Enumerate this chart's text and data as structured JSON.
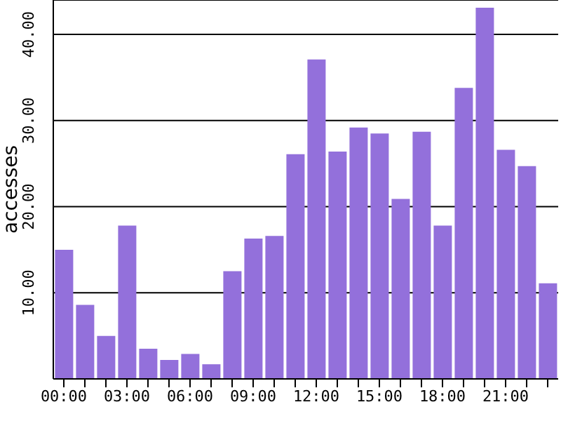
{
  "chart_data": {
    "type": "bar",
    "ylabel": "accesses",
    "categories": [
      "00:00",
      null,
      null,
      "03:00",
      null,
      null,
      "06:00",
      null,
      null,
      "09:00",
      null,
      null,
      "12:00",
      null,
      null,
      "15:00",
      null,
      null,
      "18:00",
      null,
      null,
      "21:00",
      null,
      null
    ],
    "values": [
      15.0,
      8.6,
      5.0,
      17.8,
      3.5,
      2.2,
      2.9,
      1.7,
      12.5,
      16.3,
      16.6,
      26.1,
      37.1,
      26.4,
      29.2,
      28.5,
      20.9,
      28.7,
      17.8,
      33.8,
      43.1,
      26.6,
      24.7,
      11.1
    ],
    "color": "#9370db",
    "ylim": [
      0,
      44
    ],
    "yticks": [
      {
        "value": 10,
        "label": "10.00"
      },
      {
        "value": 20,
        "label": "20.00"
      },
      {
        "value": 30,
        "label": "30.00"
      },
      {
        "value": 40,
        "label": "40.00"
      }
    ],
    "grid": "y"
  }
}
